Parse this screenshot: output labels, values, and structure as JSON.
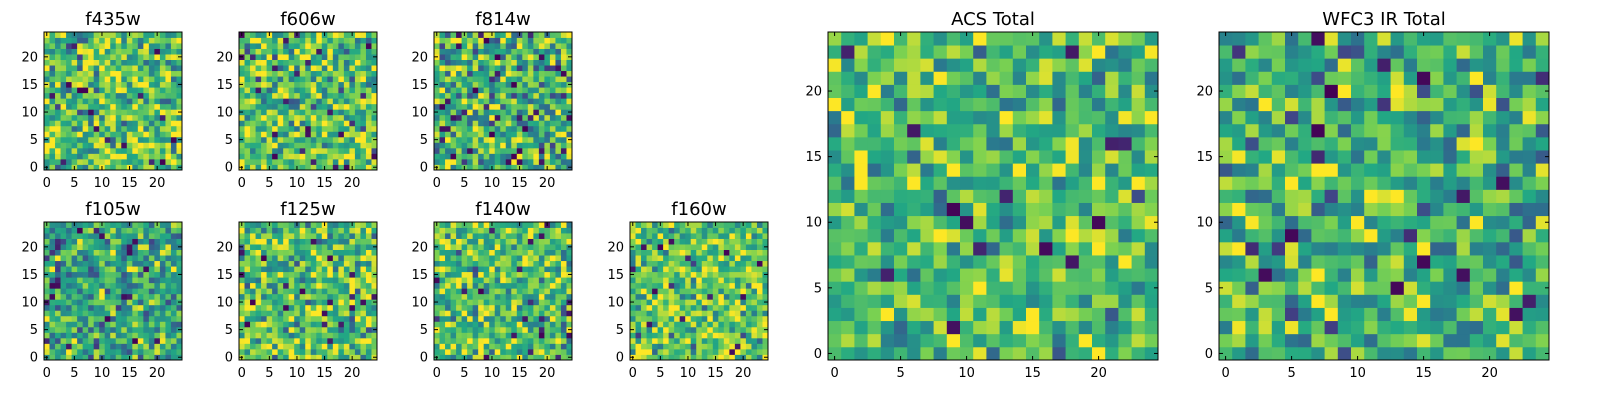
{
  "figure": {
    "colormap": {
      "name": "viridis",
      "stops": [
        "#440154",
        "#414487",
        "#2a788e",
        "#22a884",
        "#7ad151",
        "#fde725"
      ]
    }
  },
  "chart_data": [
    {
      "id": "f435w",
      "type": "heatmap",
      "title": "f435w",
      "xlim": [
        0,
        24
      ],
      "ylim": [
        0,
        24
      ],
      "xticks": [
        0,
        5,
        10,
        15,
        20
      ],
      "yticks": [
        0,
        5,
        10,
        15,
        20
      ],
      "grid": false,
      "grid_size": [
        25,
        25
      ],
      "value_range": [
        0,
        1
      ],
      "mean_level": 0.72,
      "spread": 0.2,
      "seed": 11
    },
    {
      "id": "f606w",
      "type": "heatmap",
      "title": "f606w",
      "xlim": [
        0,
        24
      ],
      "ylim": [
        0,
        24
      ],
      "xticks": [
        0,
        5,
        10,
        15,
        20
      ],
      "yticks": [
        0,
        5,
        10,
        15,
        20
      ],
      "grid": false,
      "grid_size": [
        25,
        25
      ],
      "value_range": [
        0,
        1
      ],
      "mean_level": 0.7,
      "spread": 0.21,
      "seed": 23
    },
    {
      "id": "f814w",
      "type": "heatmap",
      "title": "f814w",
      "xlim": [
        0,
        24
      ],
      "ylim": [
        0,
        24
      ],
      "xticks": [
        0,
        5,
        10,
        15,
        20
      ],
      "yticks": [
        0,
        5,
        10,
        15,
        20
      ],
      "grid": false,
      "grid_size": [
        25,
        25
      ],
      "value_range": [
        0,
        1
      ],
      "mean_level": 0.64,
      "spread": 0.24,
      "seed": 37
    },
    {
      "id": "f105w",
      "type": "heatmap",
      "title": "f105w",
      "xlim": [
        0,
        24
      ],
      "ylim": [
        0,
        24
      ],
      "xticks": [
        0,
        5,
        10,
        15,
        20
      ],
      "yticks": [
        0,
        5,
        10,
        15,
        20
      ],
      "grid": false,
      "grid_size": [
        25,
        25
      ],
      "value_range": [
        0,
        1
      ],
      "mean_level": 0.6,
      "spread": 0.2,
      "seed": 41
    },
    {
      "id": "f125w",
      "type": "heatmap",
      "title": "f125w",
      "xlim": [
        0,
        24
      ],
      "ylim": [
        0,
        24
      ],
      "xticks": [
        0,
        5,
        10,
        15,
        20
      ],
      "yticks": [
        0,
        5,
        10,
        15,
        20
      ],
      "grid": false,
      "grid_size": [
        25,
        25
      ],
      "value_range": [
        0,
        1
      ],
      "mean_level": 0.7,
      "spread": 0.2,
      "seed": 53
    },
    {
      "id": "f140w",
      "type": "heatmap",
      "title": "f140w",
      "xlim": [
        0,
        24
      ],
      "ylim": [
        0,
        24
      ],
      "xticks": [
        0,
        5,
        10,
        15,
        20
      ],
      "yticks": [
        0,
        5,
        10,
        15,
        20
      ],
      "grid": false,
      "grid_size": [
        25,
        25
      ],
      "value_range": [
        0,
        1
      ],
      "mean_level": 0.7,
      "spread": 0.2,
      "seed": 67
    },
    {
      "id": "f160w",
      "type": "heatmap",
      "title": "f160w",
      "xlim": [
        0,
        24
      ],
      "ylim": [
        0,
        24
      ],
      "xticks": [
        0,
        5,
        10,
        15,
        20
      ],
      "yticks": [
        0,
        5,
        10,
        15,
        20
      ],
      "grid": false,
      "grid_size": [
        25,
        25
      ],
      "value_range": [
        0,
        1
      ],
      "mean_level": 0.74,
      "spread": 0.19,
      "seed": 79
    },
    {
      "id": "acs_total",
      "type": "heatmap",
      "title": "ACS Total",
      "xlim": [
        0,
        24
      ],
      "ylim": [
        0,
        24
      ],
      "xticks": [
        0,
        5,
        10,
        15,
        20
      ],
      "yticks": [
        0,
        5,
        10,
        15,
        20
      ],
      "grid": false,
      "grid_size": [
        25,
        25
      ],
      "value_range": [
        0,
        1
      ],
      "mean_level": 0.7,
      "spread": 0.17,
      "seed": 83
    },
    {
      "id": "wfc3_ir_total",
      "type": "heatmap",
      "title": "WFC3 IR Total",
      "xlim": [
        0,
        24
      ],
      "ylim": [
        0,
        24
      ],
      "xticks": [
        0,
        5,
        10,
        15,
        20
      ],
      "yticks": [
        0,
        5,
        10,
        15,
        20
      ],
      "grid": false,
      "grid_size": [
        25,
        25
      ],
      "value_range": [
        0,
        1
      ],
      "mean_level": 0.64,
      "spread": 0.2,
      "seed": 97
    }
  ]
}
